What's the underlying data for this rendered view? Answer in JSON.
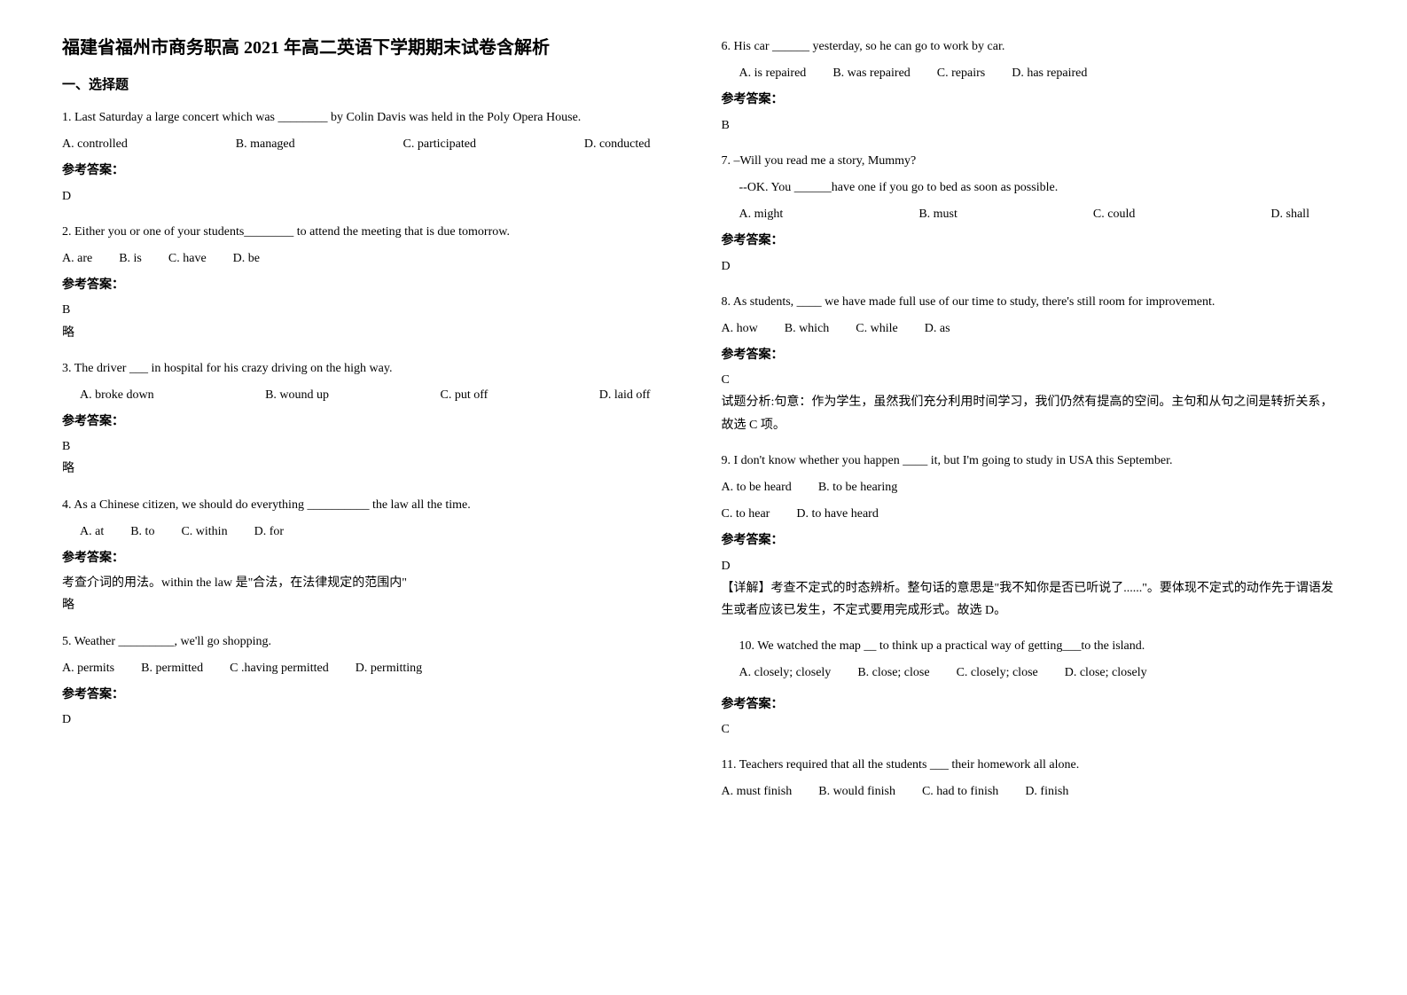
{
  "title": "福建省福州市商务职高 2021 年高二英语下学期期末试卷含解析",
  "section1_header": "一、选择题",
  "q1": {
    "text": "1. Last Saturday a large concert which was ________ by Colin Davis was held in the Poly Opera House.",
    "opts": [
      "A. controlled",
      "B. managed",
      "C. participated",
      "D. conducted"
    ],
    "answer_label": "参考答案：",
    "answer": "D"
  },
  "q2": {
    "text": "2. Either you or one of your students________ to attend the meeting that is due tomorrow.",
    "opts": [
      "A. are",
      "B. is",
      "C. have",
      "D. be"
    ],
    "answer_label": "参考答案：",
    "answer": "B",
    "explanation": "略"
  },
  "q3": {
    "text": "3. The driver ___ in hospital for his crazy driving on the high way.",
    "opts": [
      "A. broke  down",
      "B. wound up",
      "C. put off",
      "D. laid off"
    ],
    "answer_label": "参考答案：",
    "answer": "B",
    "explanation": "略"
  },
  "q4": {
    "text": "4. As a Chinese citizen, we should do everything __________ the law all the time.",
    "opts": [
      "A. at",
      "B. to",
      "C. within",
      "D. for"
    ],
    "answer_label": "参考答案：",
    "explanation1": "考查介词的用法。within the law 是\"合法，在法律规定的范围内\"",
    "explanation2": "略"
  },
  "q5": {
    "text": "5. Weather _________, we'll go shopping.",
    "opts": [
      "A. permits",
      "B. permitted",
      "C .having permitted",
      "D. permitting"
    ],
    "answer_label": "参考答案：",
    "answer": "D"
  },
  "q6": {
    "text": "6. His car ______ yesterday, so he can go to work by car.",
    "opts": [
      "A. is repaired",
      "B. was repaired",
      "C. repairs",
      "D. has repaired"
    ],
    "answer_label": "参考答案：",
    "answer": "B"
  },
  "q7": {
    "text1": "7. –Will you read me a story, Mummy?",
    "text2": "--OK. You ______have one if you go to bed as soon as possible.",
    "opts": [
      "A. might",
      "B. must",
      "C. could",
      "D. shall"
    ],
    "answer_label": "参考答案：",
    "answer": "D"
  },
  "q8": {
    "text": "8. As students, ____ we have made full use of our time to study, there's still room for improvement.",
    "opts": [
      "A. how",
      "B. which",
      "C. while",
      "D. as"
    ],
    "answer_label": "参考答案：",
    "answer": "C",
    "explanation": "试题分析:句意：作为学生，虽然我们充分利用时间学习，我们仍然有提高的空间。主句和从句之间是转折关系，故选 C 项。"
  },
  "q9": {
    "text": "9. I don't know whether you happen ____ it, but I'm going to study in USA this September.",
    "opts": [
      "A. to be heard",
      "B. to be hearing",
      "C. to hear",
      "D. to have heard"
    ],
    "answer_label": "参考答案：",
    "answer": "D",
    "explanation": "【详解】考查不定式的时态辨析。整句话的意思是\"我不知你是否已听说了......\"。要体现不定式的动作先于谓语发生或者应该已发生，不定式要用完成形式。故选 D。"
  },
  "q10": {
    "text": "10.  We watched the map __ to think up a practical way of getting___to the island.",
    "opts": [
      "A. closely; closely",
      "B. close; close",
      "C. closely; close",
      "D. close; closely"
    ],
    "answer_label": "参考答案：",
    "answer": "C"
  },
  "q11": {
    "text": "11. Teachers required that all the students ___ their homework all alone.",
    "opts": [
      "A. must finish",
      "B. would finish",
      "C. had to finish",
      "D. finish"
    ]
  }
}
